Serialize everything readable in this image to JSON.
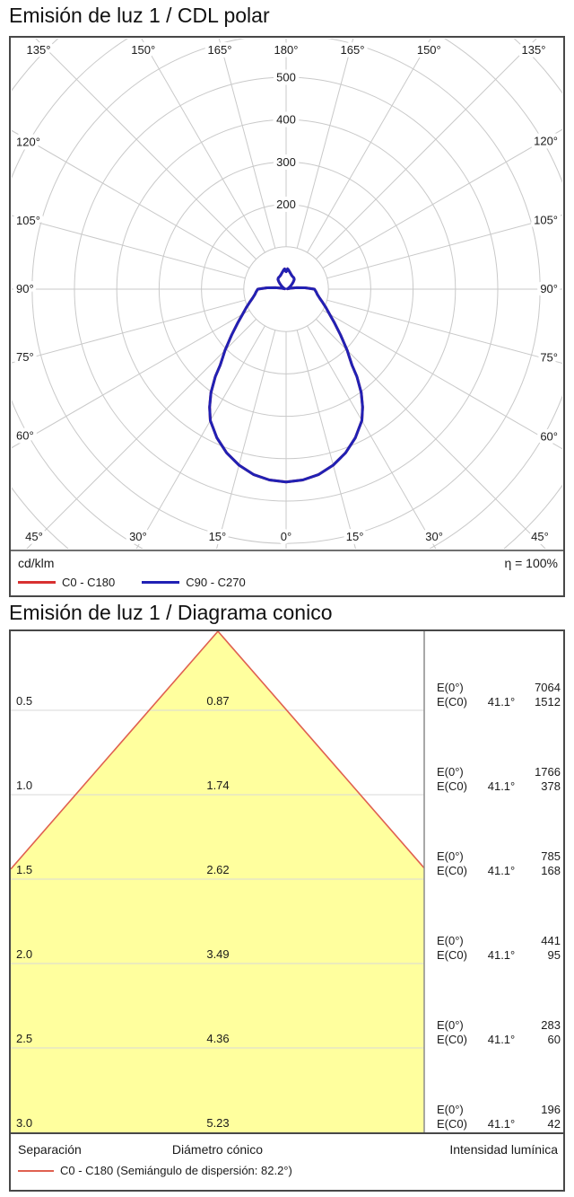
{
  "polar_section": {
    "title": "Emisión de luz 1 / CDL polar",
    "unit_label": "cd/klm",
    "efficiency_label": "η = 100%",
    "legend": [
      {
        "label": "C0 - C180",
        "color": "#d83030"
      },
      {
        "label": "C90 - C270",
        "color": "#2121b4"
      }
    ]
  },
  "cone_section": {
    "title": "Emisión de luz 1 / Diagrama conico",
    "e0_label": "E(0°)",
    "ec0_label": "E(C0)",
    "footer": {
      "col_separation": "Separación",
      "col_diameter": "Diámetro cónico",
      "col_intensity": "Intensidad lumínica"
    },
    "legend_label": "C0 - C180 (Semiángulo de dispersión: 82.2°)",
    "legend_color": "#e06050"
  },
  "chart_data": [
    {
      "type": "polar-line",
      "title": "Emisión de luz 1 / CDL polar",
      "unit": "cd/klm",
      "efficiency": "η = 100%",
      "grid": true,
      "ring_step": 100,
      "ring_max_drawn": 900,
      "ring_labels": [
        "200",
        "300",
        "400",
        "500"
      ],
      "angle_labels": [
        "0°",
        "15°",
        "30°",
        "45°",
        "60°",
        "75°",
        "90°",
        "105°",
        "120°",
        "135°",
        "150°",
        "165°",
        "180°"
      ],
      "symmetric": true,
      "gamma_deg": [
        0,
        5,
        10,
        15,
        20,
        25,
        30,
        33,
        36,
        39,
        41,
        43,
        45,
        50,
        55,
        60,
        65,
        70,
        75,
        80,
        85,
        90,
        94,
        98,
        102,
        106,
        110,
        115,
        120,
        125,
        130,
        135,
        140,
        145,
        150,
        155,
        160,
        165,
        170,
        173,
        176,
        178,
        180
      ],
      "series": [
        {
          "name": "C0 - C180",
          "color": "#d83030",
          "values": [
            455,
            452,
            444,
            430,
            411,
            387,
            358,
            332,
            302,
            266,
            237,
            219,
            204,
            168,
            140,
            119,
            104,
            92,
            82,
            75,
            71,
            67,
            45,
            25,
            10,
            3,
            4,
            6,
            9,
            13,
            18,
            24,
            30,
            32,
            33,
            34,
            36,
            39,
            43,
            46,
            48,
            43,
            41
          ]
        },
        {
          "name": "C90 - C270",
          "color": "#2121b4",
          "values": [
            455,
            452,
            444,
            430,
            411,
            387,
            358,
            332,
            302,
            266,
            237,
            219,
            204,
            168,
            140,
            119,
            104,
            92,
            82,
            75,
            71,
            67,
            45,
            25,
            10,
            3,
            4,
            6,
            9,
            13,
            18,
            24,
            30,
            32,
            33,
            34,
            36,
            39,
            43,
            46,
            48,
            43,
            41
          ]
        }
      ]
    },
    {
      "type": "cone-diagram",
      "title": "Emisión de luz 1 / Diagrama conico",
      "beam_half_angle_deg": 41.1,
      "angle_label": "41.1°",
      "fill_color": "#ffff9e",
      "edge_color": "#e06050",
      "rows": [
        {
          "separation": "0.5",
          "diameter": "0.87",
          "E0": "7064",
          "EC0": "1512"
        },
        {
          "separation": "1.0",
          "diameter": "1.74",
          "E0": "1766",
          "EC0": "378"
        },
        {
          "separation": "1.5",
          "diameter": "2.62",
          "E0": "785",
          "EC0": "168"
        },
        {
          "separation": "2.0",
          "diameter": "3.49",
          "E0": "441",
          "EC0": "95"
        },
        {
          "separation": "2.5",
          "diameter": "4.36",
          "E0": "283",
          "EC0": "60"
        },
        {
          "separation": "3.0",
          "diameter": "5.23",
          "E0": "196",
          "EC0": "42"
        }
      ]
    }
  ]
}
